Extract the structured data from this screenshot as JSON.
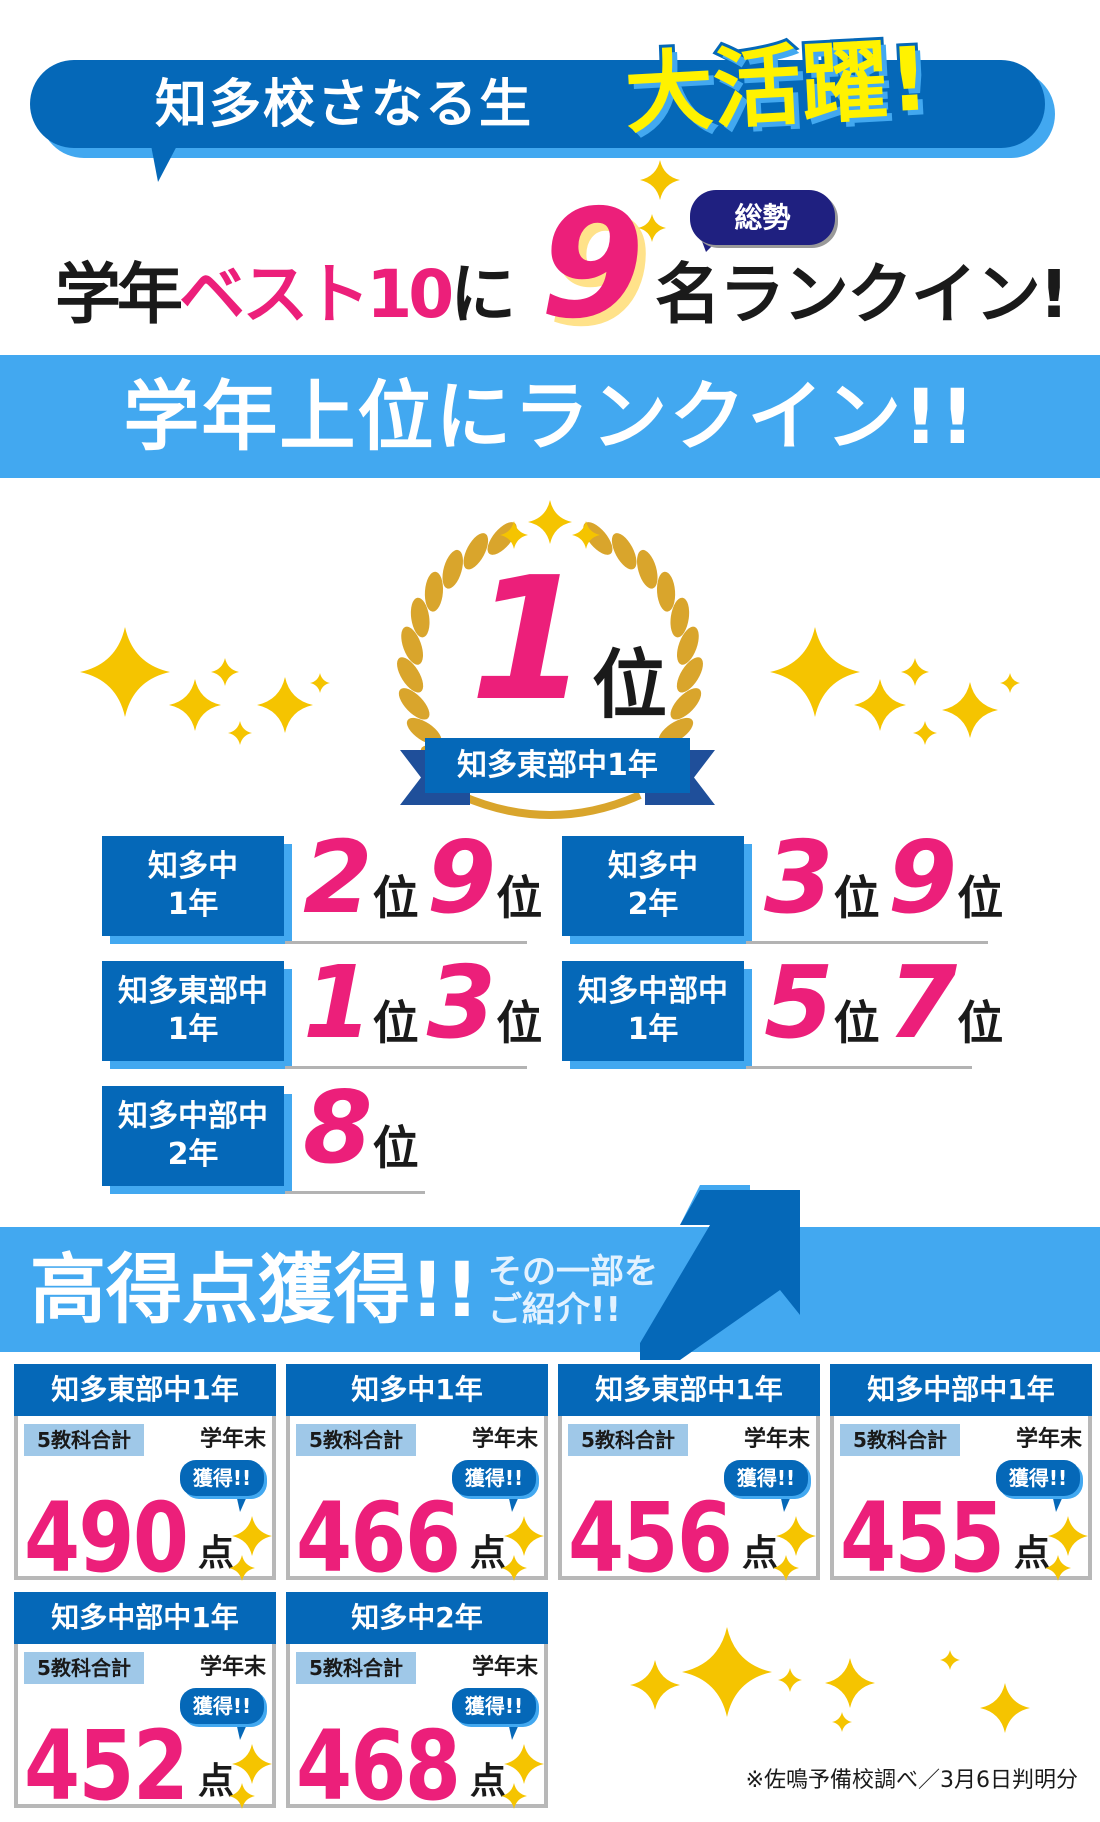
{
  "header": {
    "banner_text": "知多校さなる生",
    "banner_highlight": "大活躍!",
    "line_prefix": "学年",
    "line_pink": "ベスト10",
    "line_mid": "に",
    "count": "9",
    "line_suffix": "名ランクイン!",
    "total_badge": "総勢"
  },
  "ranking": {
    "band_title": "学年上位にランクイン!!",
    "top": {
      "rank": "1",
      "unit": "位",
      "school": "知多東部中1年"
    },
    "rows": [
      {
        "school": "知多中",
        "grade": "1年",
        "ranks": [
          "2",
          "9"
        ]
      },
      {
        "school": "知多中",
        "grade": "2年",
        "ranks": [
          "3",
          "9"
        ]
      },
      {
        "school": "知多東部中",
        "grade": "1年",
        "ranks": [
          "1",
          "3"
        ]
      },
      {
        "school": "知多中部中",
        "grade": "1年",
        "ranks": [
          "5",
          "7"
        ]
      },
      {
        "school": "知多中部中",
        "grade": "2年",
        "ranks": [
          "8"
        ]
      }
    ],
    "unit": "位"
  },
  "scores": {
    "band_title": "高得点獲得!!",
    "band_sub_1": "その一部を",
    "band_sub_2": "ご紹介!!",
    "tag": "5教科合計",
    "term": "学年末",
    "bubble": "獲得!!",
    "unit": "点",
    "cards": [
      {
        "school": "知多東部中1年",
        "score": "490"
      },
      {
        "school": "知多中1年",
        "score": "466"
      },
      {
        "school": "知多東部中1年",
        "score": "456"
      },
      {
        "school": "知多中部中1年",
        "score": "455"
      },
      {
        "school": "知多中部中1年",
        "score": "452"
      },
      {
        "school": "知多中2年",
        "score": "468"
      }
    ]
  },
  "footnote": "※佐鳴予備校調べ／3月6日判明分",
  "colors": {
    "dark_blue": "#0568b8",
    "light_blue": "#42a8f0",
    "pink": "#ec1f7a",
    "yellow": "#fff200",
    "gold": "#f5c400",
    "navy": "#1f2080"
  }
}
